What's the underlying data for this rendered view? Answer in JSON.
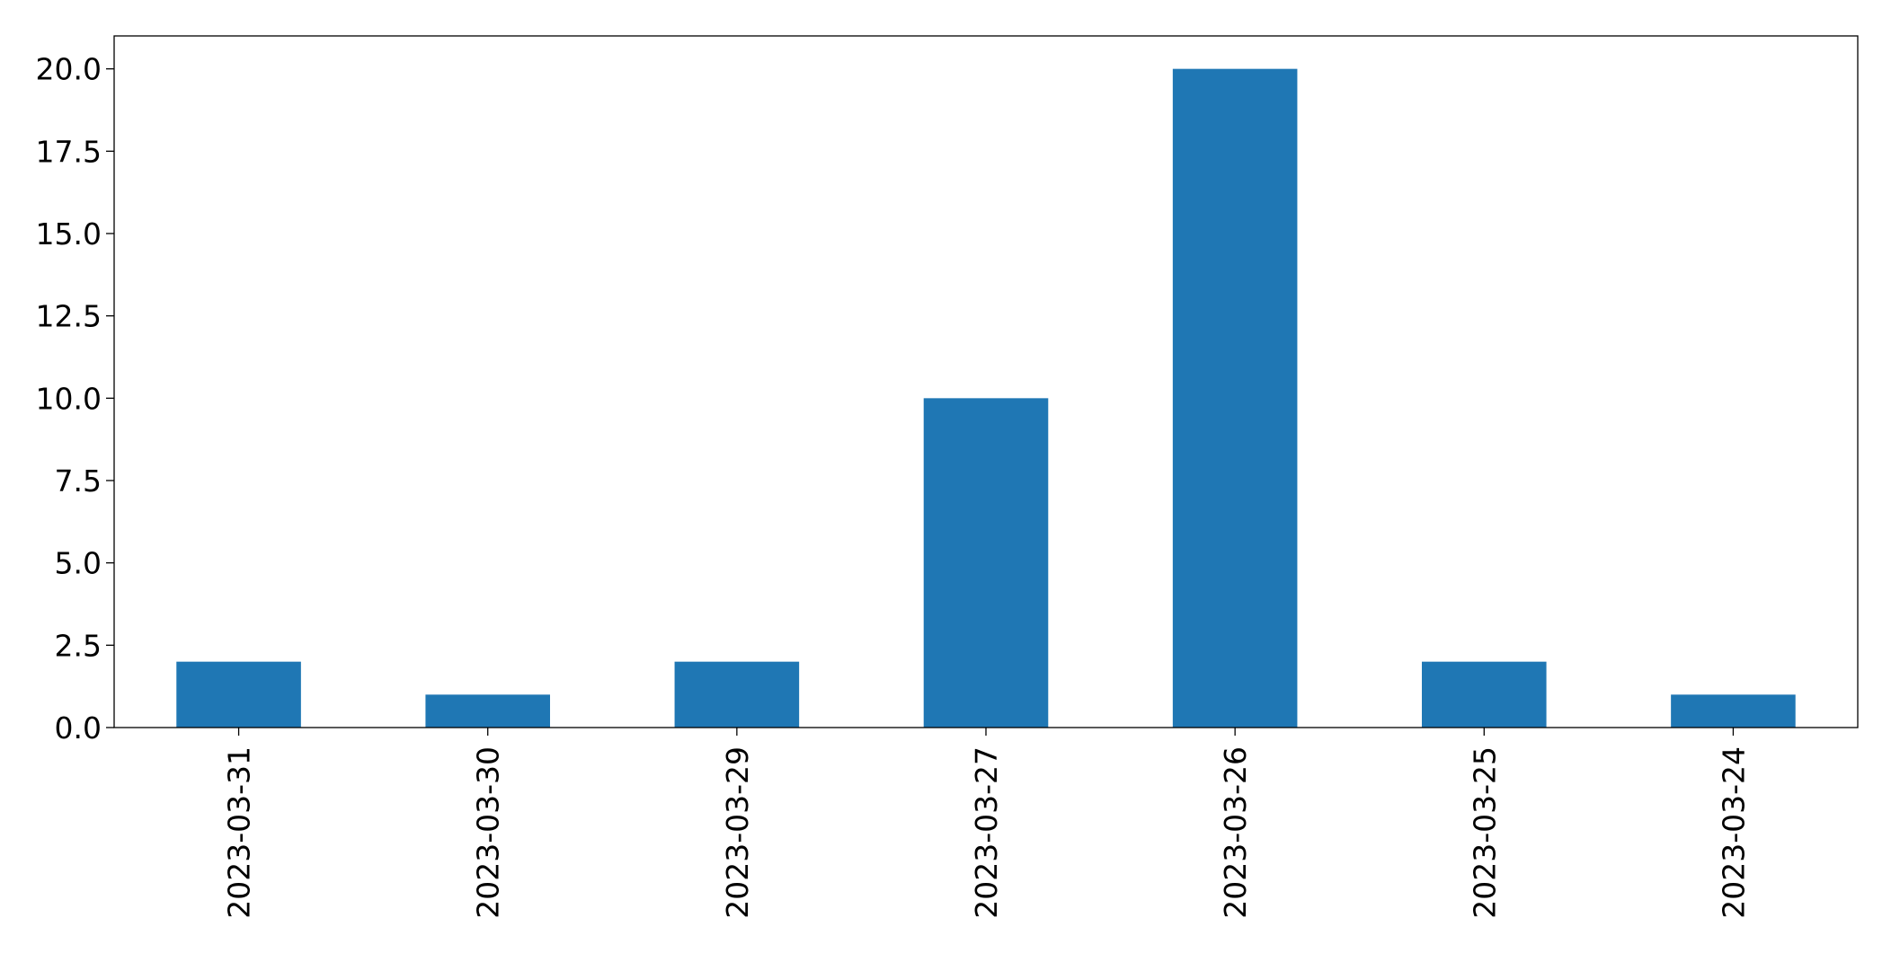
{
  "chart_data": {
    "type": "bar",
    "categories": [
      "2023-03-31",
      "2023-03-30",
      "2023-03-29",
      "2023-03-27",
      "2023-03-26",
      "2023-03-25",
      "2023-03-24"
    ],
    "values": [
      2,
      1,
      2,
      10,
      20,
      2,
      1
    ],
    "yticks": [
      "0.0",
      "2.5",
      "5.0",
      "7.5",
      "10.0",
      "12.5",
      "15.0",
      "17.5",
      "20.0"
    ],
    "title": "",
    "xlabel": "",
    "ylabel": "",
    "ylim": [
      0,
      21
    ],
    "grid": false,
    "legend": "none",
    "bar_color": "#1f77b4"
  }
}
